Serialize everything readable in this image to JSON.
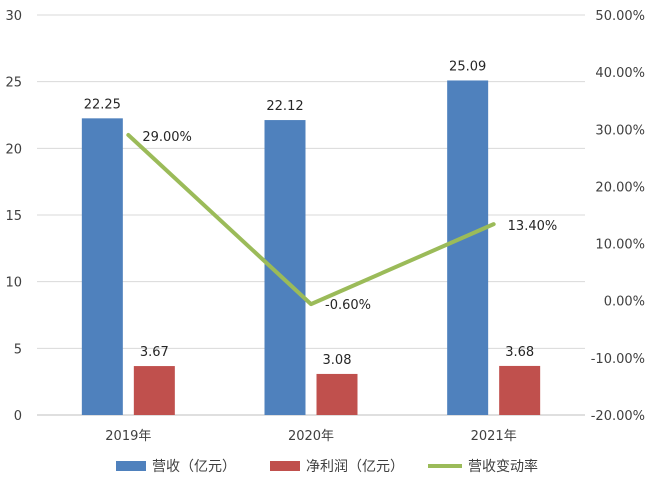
{
  "chart_data": {
    "type": "bar",
    "categories": [
      "2019年",
      "2020年",
      "2021年"
    ],
    "series": [
      {
        "name": "营收（亿元）",
        "type": "bar",
        "axis": "left",
        "color": "#4F81BD",
        "values": [
          22.25,
          22.12,
          25.09
        ],
        "labels": [
          "22.25",
          "22.12",
          "25.09"
        ]
      },
      {
        "name": "净利润（亿元）",
        "type": "bar",
        "axis": "left",
        "color": "#C0504D",
        "values": [
          3.67,
          3.08,
          3.68
        ],
        "labels": [
          "3.67",
          "3.08",
          "3.68"
        ]
      },
      {
        "name": "营收变动率",
        "type": "line",
        "axis": "right",
        "color": "#9BBB59",
        "values": [
          29.0,
          -0.6,
          13.4
        ],
        "labels": [
          "29.00%",
          "-0.60%",
          "13.40%"
        ]
      }
    ],
    "y_left": {
      "min": 0,
      "max": 30,
      "ticks": [
        "0",
        "5",
        "10",
        "15",
        "20",
        "25",
        "30"
      ]
    },
    "y_right": {
      "min": -20,
      "max": 50,
      "ticks": [
        "-20.00%",
        "-10.00%",
        "0.00%",
        "10.00%",
        "20.00%",
        "30.00%",
        "40.00%",
        "50.00%"
      ]
    },
    "grid": true,
    "legend": "bottom"
  }
}
